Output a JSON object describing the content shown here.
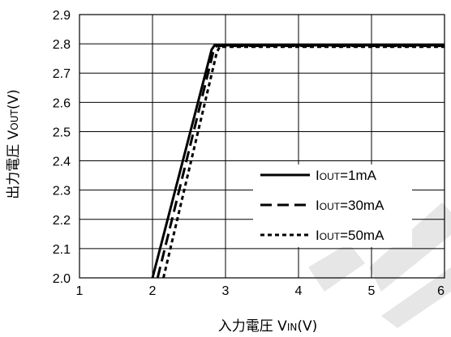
{
  "chart_data": {
    "type": "line",
    "xlabel": {
      "main": "入力電圧 V",
      "sub": "IN",
      "unit": "(V)"
    },
    "ylabel": {
      "main": "出力電圧 V",
      "sub": "OUT",
      "unit": "(V)"
    },
    "xlim": [
      1,
      6
    ],
    "ylim": [
      2.0,
      2.9
    ],
    "xticks": [
      "1",
      "2",
      "3",
      "4",
      "5",
      "6"
    ],
    "yticks": [
      "2.0",
      "2.1",
      "2.2",
      "2.3",
      "2.4",
      "2.5",
      "2.6",
      "2.7",
      "2.8",
      "2.9"
    ],
    "grid": true,
    "legend_position": "bottom-right",
    "series": [
      {
        "name_main": "I",
        "name_sub": "OUT",
        "name_rest": "=1mA",
        "style": "solid",
        "x": [
          2.0,
          2.81,
          2.85,
          6.0
        ],
        "y": [
          2.0,
          2.78,
          2.795,
          2.795
        ]
      },
      {
        "name_main": "I",
        "name_sub": "OUT",
        "name_rest": "=30mA",
        "style": "dashed",
        "x": [
          2.07,
          2.84,
          2.88,
          6.0
        ],
        "y": [
          2.0,
          2.78,
          2.793,
          2.793
        ]
      },
      {
        "name_main": "I",
        "name_sub": "OUT",
        "name_rest": "=50mA",
        "style": "dotted",
        "x": [
          2.15,
          2.88,
          2.92,
          6.0
        ],
        "y": [
          2.0,
          2.77,
          2.79,
          2.79
        ]
      }
    ]
  }
}
